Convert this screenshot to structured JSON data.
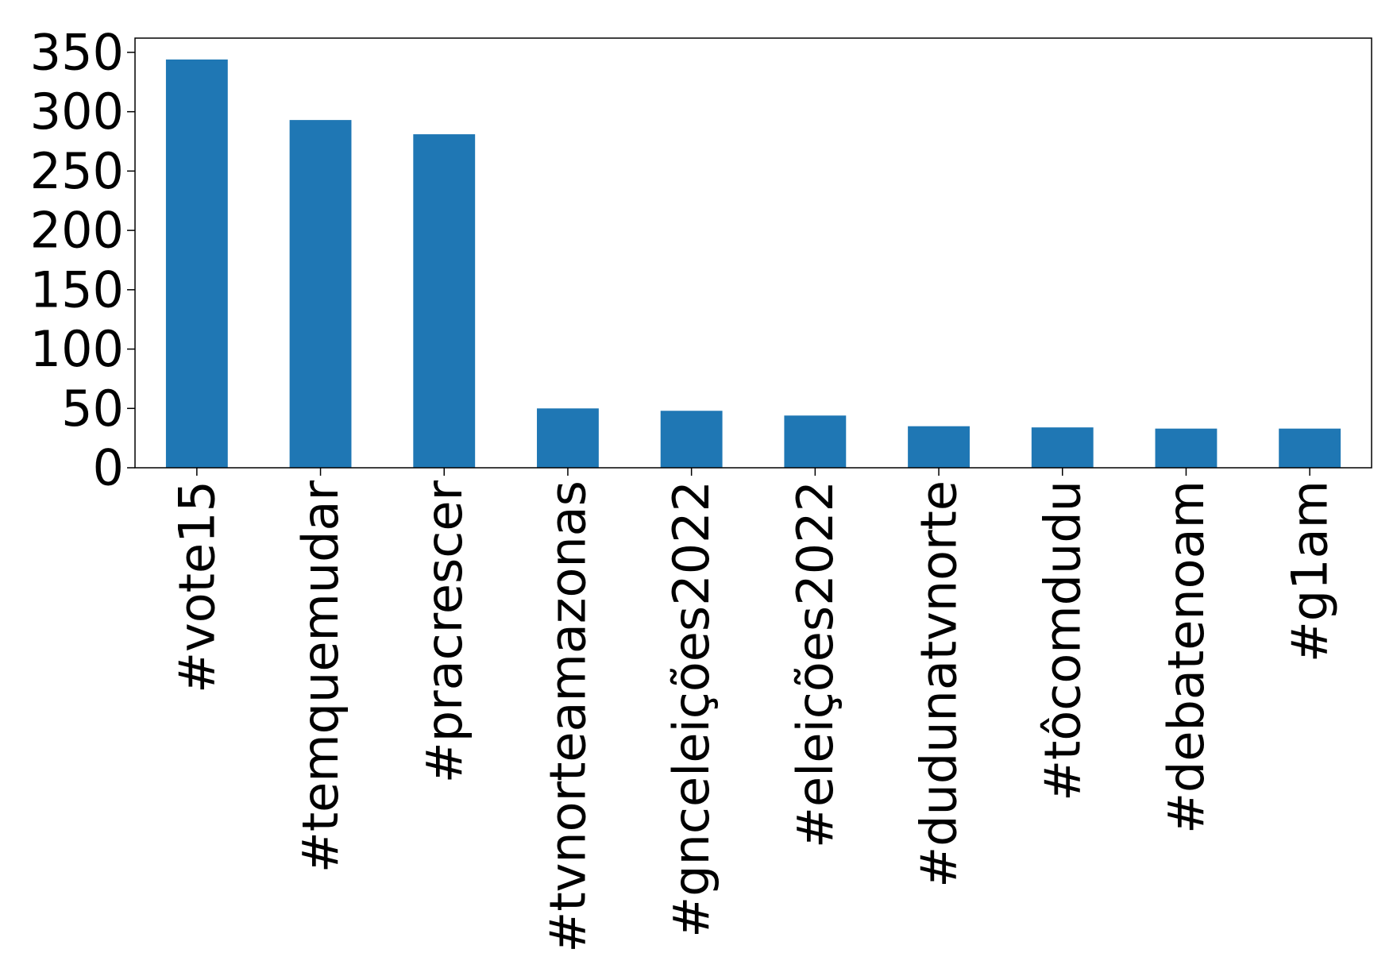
{
  "chart_data": {
    "type": "bar",
    "title": "",
    "xlabel": "",
    "ylabel": "",
    "categories": [
      "#vote15",
      "#temquemudar",
      "#pracrescer",
      "#tvnorteamazonas",
      "#gnceleições2022",
      "#eleições2022",
      "#dudunatvnorte",
      "#tôcomdudu",
      "#debatenoam",
      "#g1am"
    ],
    "values": [
      344,
      293,
      281,
      50,
      48,
      44,
      35,
      34,
      33,
      33
    ],
    "ylim": [
      0,
      362
    ],
    "yticks": [
      0,
      50,
      100,
      150,
      200,
      250,
      300,
      350
    ],
    "bar_color": "#1f77b4",
    "grid": false,
    "legend": "none"
  }
}
